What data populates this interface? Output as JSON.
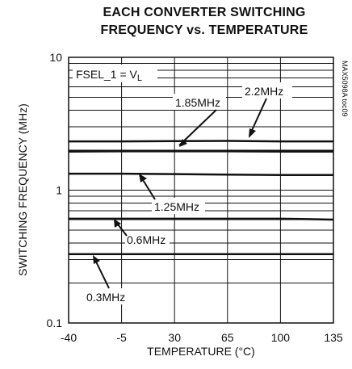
{
  "chart_data": {
    "type": "line",
    "title_line1": "EACH CONVERTER SWITCHING",
    "title_line2": "FREQUENCY vs. TEMPERATURE",
    "xlabel": "TEMPERATURE (°C)",
    "ylabel": "SWITCHING FREQUENCY (MHz)",
    "xlim": [
      -40,
      135
    ],
    "ylim": [
      0.1,
      10
    ],
    "yscale": "log",
    "grid": true,
    "x_ticks": [
      "-40",
      "-5",
      "30",
      "65",
      "100",
      "135"
    ],
    "y_ticks": [
      "0.1",
      "1",
      "10"
    ],
    "condition_prefix": "FSEL_1 = V",
    "condition_subscript": "L",
    "watermark": "MAX5098A toc09",
    "series": [
      {
        "name": "2.2MHz",
        "x": [
          -40,
          -5,
          30,
          65,
          100,
          135
        ],
        "y": [
          2.33,
          2.33,
          2.34,
          2.35,
          2.33,
          2.33
        ]
      },
      {
        "name": "1.85MHz",
        "x": [
          -40,
          -5,
          30,
          65,
          100,
          135
        ],
        "y": [
          1.95,
          1.96,
          1.96,
          1.96,
          1.95,
          1.95
        ]
      },
      {
        "name": "1.25MHz",
        "x": [
          -40,
          -5,
          30,
          65,
          100,
          135
        ],
        "y": [
          1.33,
          1.33,
          1.32,
          1.31,
          1.3,
          1.3
        ]
      },
      {
        "name": "0.6MHz",
        "x": [
          -40,
          -5,
          30,
          65,
          100,
          135
        ],
        "y": [
          0.61,
          0.61,
          0.61,
          0.61,
          0.61,
          0.6
        ]
      },
      {
        "name": "0.3MHz",
        "x": [
          -40,
          -5,
          30,
          65,
          100,
          135
        ],
        "y": [
          0.33,
          0.33,
          0.33,
          0.33,
          0.33,
          0.33
        ]
      }
    ]
  }
}
